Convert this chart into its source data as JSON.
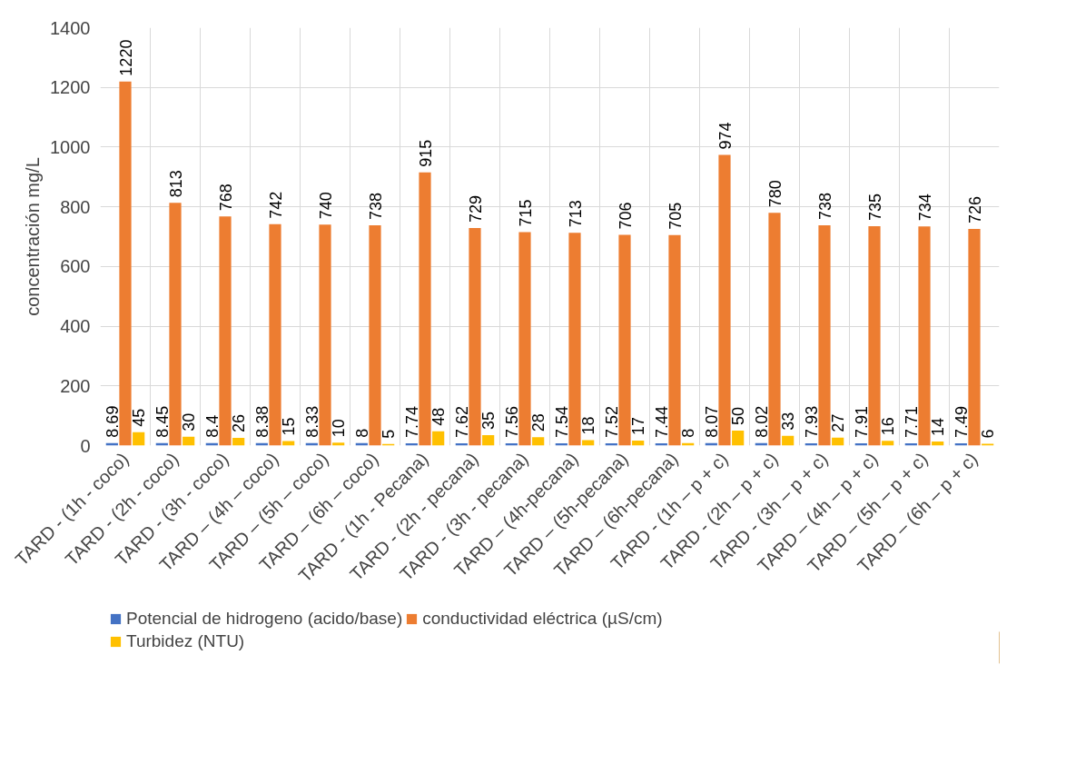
{
  "chart_data": {
    "type": "bar",
    "ylabel": "concentración mg/L",
    "categories": [
      "TARD - (1h - coco)",
      "TARD - (2h - coco)",
      "TARD - (3h - coco)",
      "TARD – (4h – coco)",
      "TARD – (5h – coco)",
      "TARD – (6h – coco)",
      "TARD - (1h - Pecana)",
      "TARD - (2h - pecana)",
      "TARD - (3h - pecana)",
      "TARD – (4h-pecana)",
      "TARD – (5h-pecana)",
      "TARD – (6h-pecana)",
      "TARD - (1h – p + c)",
      "TARD - (2h – p + c)",
      "TARD - (3h – p + c)",
      "TARD – (4h – p + c)",
      "TARD – (5h – p + c)",
      "TARD – (6h – p + c)"
    ],
    "series": [
      {
        "name": "Potencial de hidrogeno (acido/base)",
        "color": "#4472c4",
        "values": [
          8.69,
          8.45,
          8.4,
          8.38,
          8.33,
          8,
          7.74,
          7.62,
          7.56,
          7.54,
          7.52,
          7.44,
          8.07,
          8.02,
          7.93,
          7.91,
          7.71,
          7.49
        ]
      },
      {
        "name": "conductividad eléctrica (µS/cm)",
        "color": "#ed7d31",
        "values": [
          1220,
          813,
          768,
          742,
          740,
          738,
          915,
          729,
          715,
          713,
          706,
          705,
          974,
          780,
          738,
          735,
          734,
          726
        ]
      },
      {
        "name": "Turbidez (NTU)",
        "color": "#ffc000",
        "values": [
          45,
          30,
          26,
          15,
          10,
          5,
          48,
          35,
          28,
          18,
          17,
          8,
          50,
          33,
          27,
          16,
          14,
          6
        ]
      }
    ],
    "ylim": [
      0,
      1400
    ],
    "yticks": [
      0,
      200,
      400,
      600,
      800,
      1000,
      1200,
      1400
    ],
    "grid": true,
    "legend": "bottom",
    "data_labels": true
  }
}
